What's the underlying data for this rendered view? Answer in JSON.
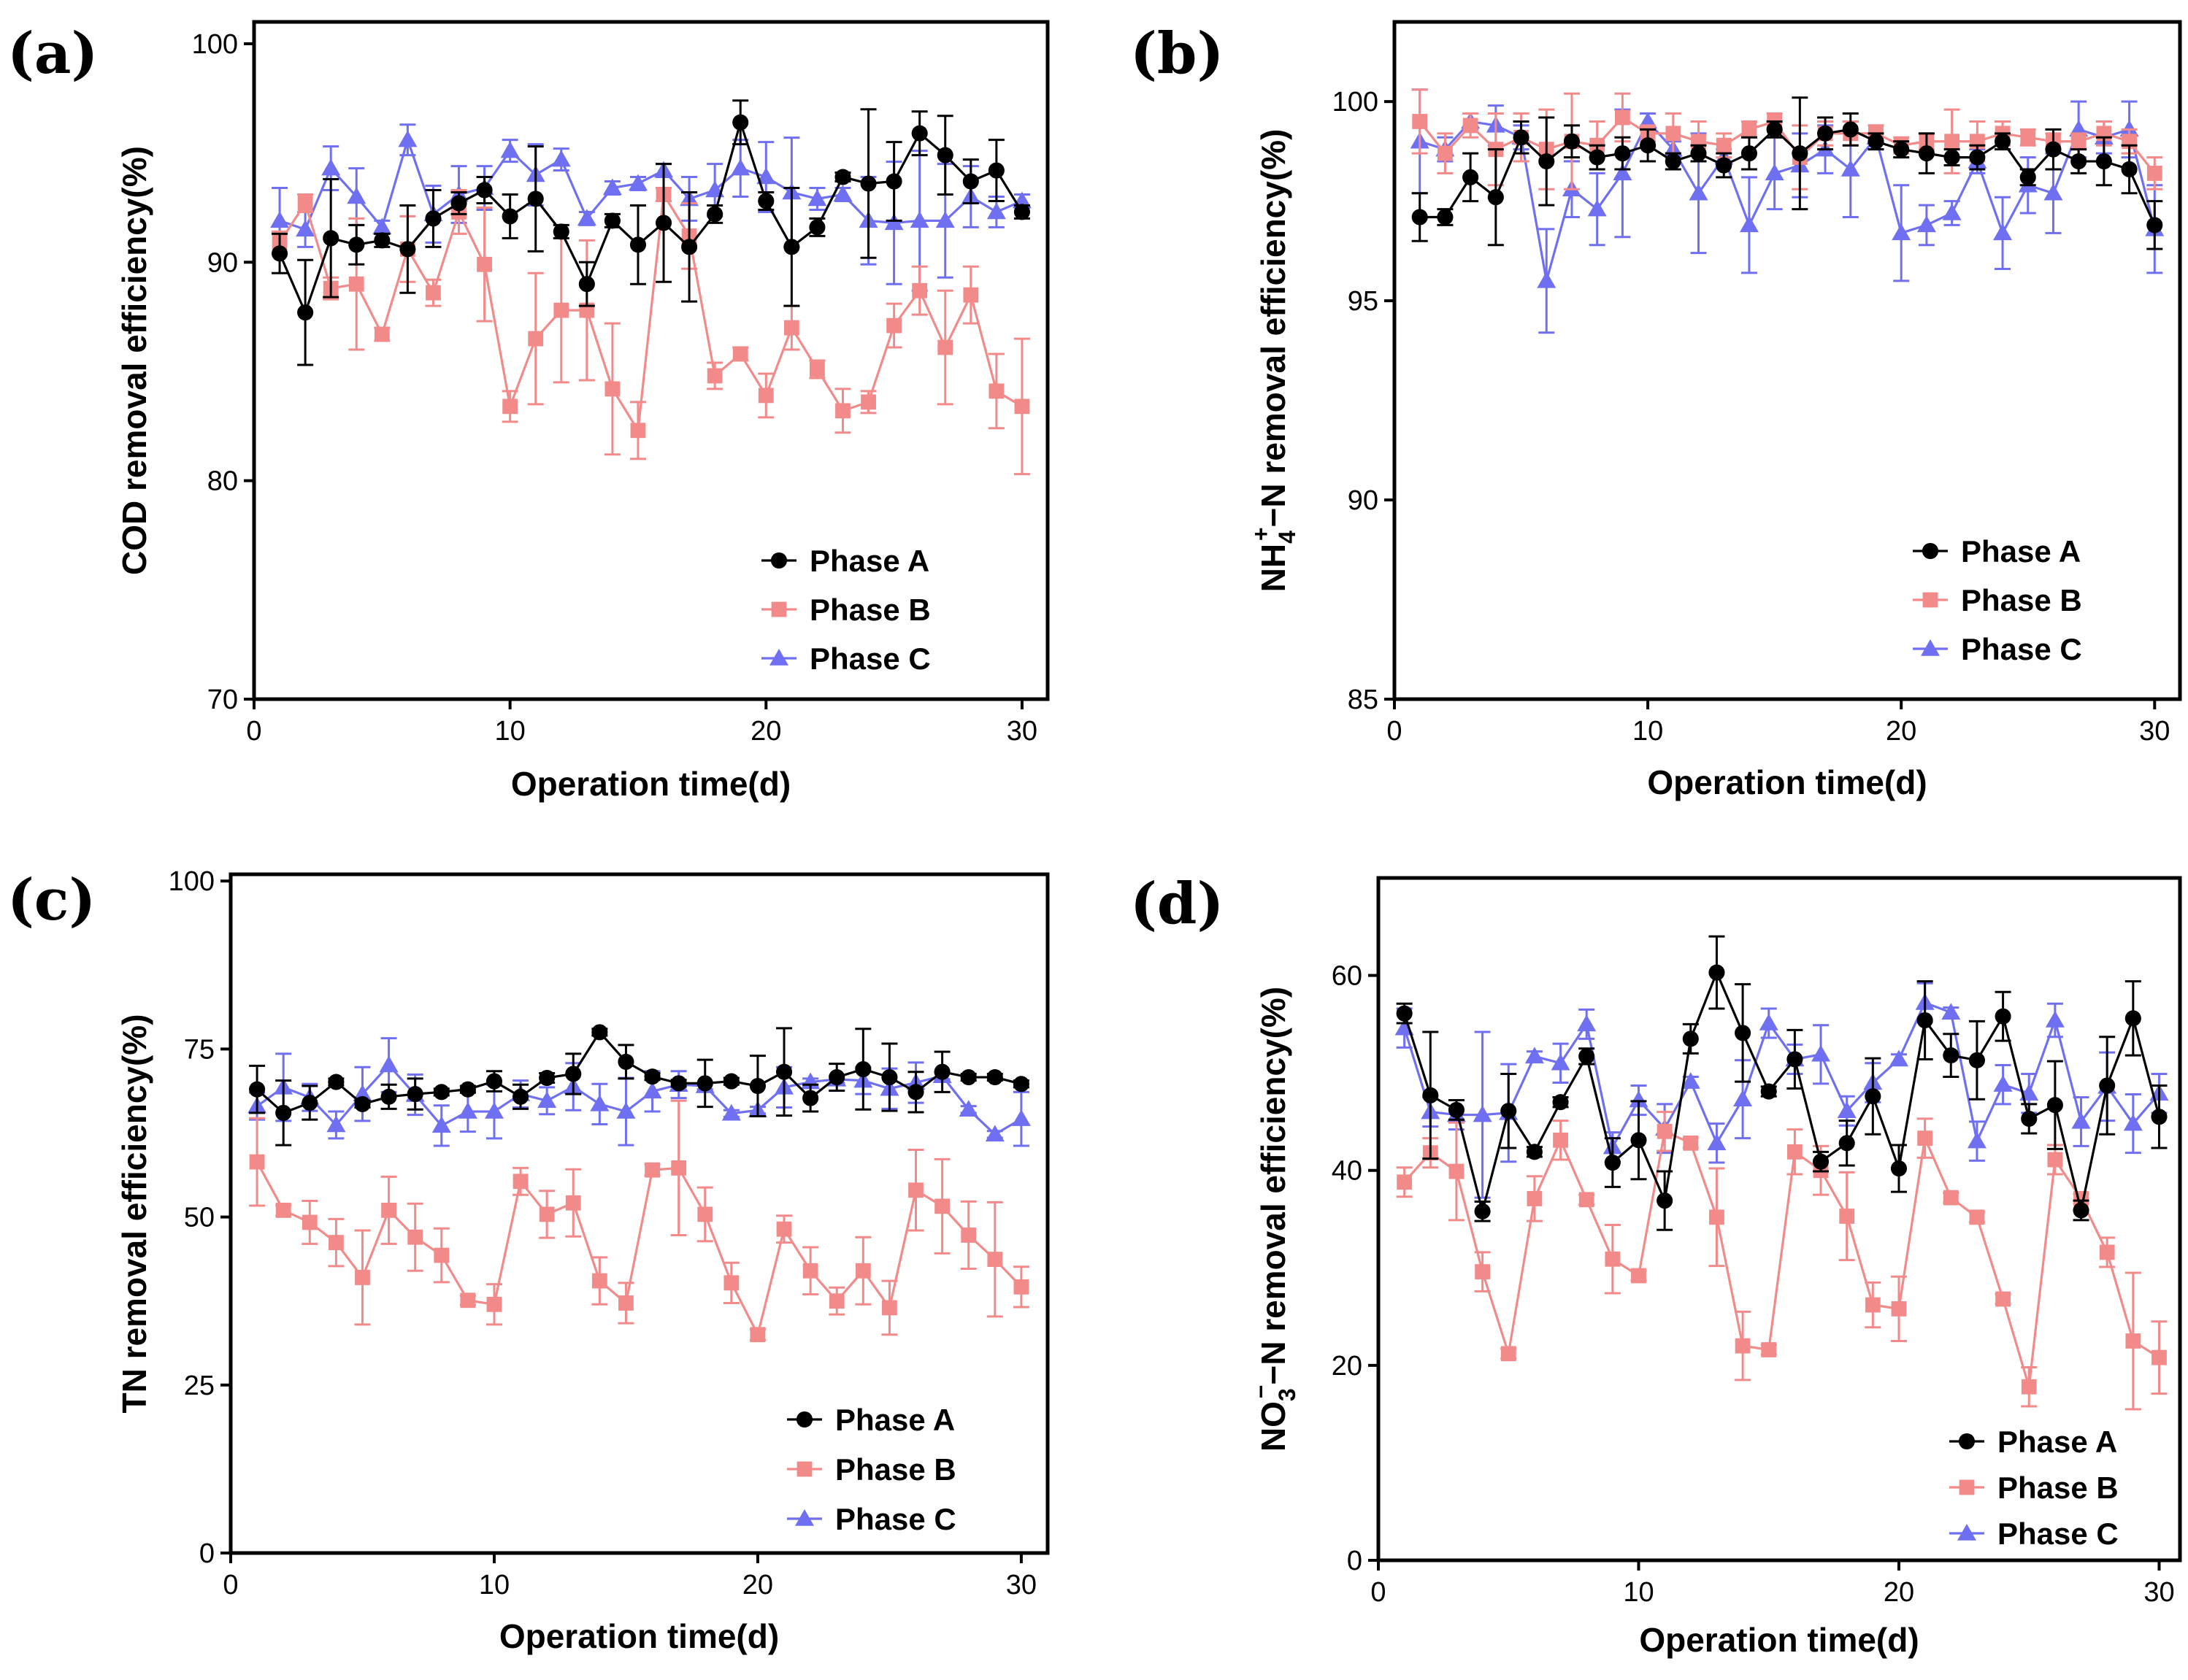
{
  "chart_data": [
    {
      "type": "line",
      "panel_label": "(a)",
      "xlabel": "Operation time(d)",
      "ylabel": "COD removal efficiency(%)",
      "ylabel_parts": [],
      "xlim": [
        0,
        31
      ],
      "ylim": [
        70,
        101
      ],
      "xticks": [
        0,
        10,
        20,
        30
      ],
      "yticks": [
        70,
        80,
        90,
        100
      ],
      "legend_position": "bottom-right",
      "x": [
        1,
        2,
        3,
        4,
        5,
        6,
        7,
        8,
        9,
        10,
        11,
        12,
        13,
        14,
        15,
        16,
        17,
        18,
        19,
        20,
        21,
        22,
        23,
        24,
        25,
        26,
        27,
        28,
        29,
        30
      ],
      "series": [
        {
          "name": "Phase A",
          "color": "#000000",
          "marker": "circle",
          "values": [
            90.4,
            87.7,
            91.1,
            90.8,
            91.0,
            90.6,
            92.0,
            92.7,
            93.3,
            92.1,
            92.9,
            91.4,
            89.0,
            91.9,
            90.8,
            91.8,
            90.7,
            92.2,
            96.4,
            92.8,
            90.7,
            91.6,
            93.9,
            93.6,
            93.7,
            95.9,
            94.9,
            93.7,
            94.2,
            92.3
          ],
          "errors": [
            0.9,
            2.4,
            2.7,
            0.9,
            0.3,
            2.0,
            1.3,
            0.5,
            0.6,
            1.0,
            2.4,
            0.3,
            1.0,
            0.3,
            1.8,
            2.7,
            2.5,
            0.4,
            1.0,
            0.4,
            2.7,
            0.4,
            0.2,
            3.4,
            1.8,
            1.0,
            1.8,
            1.0,
            1.4,
            0.3
          ]
        },
        {
          "name": "Phase B",
          "color": "#f28a8a",
          "marker": "square",
          "values": [
            90.9,
            92.7,
            88.8,
            89.0,
            86.7,
            90.6,
            88.6,
            92.3,
            89.9,
            83.4,
            86.5,
            87.8,
            87.8,
            84.2,
            82.3,
            93.1,
            91.2,
            84.8,
            85.8,
            83.9,
            87.0,
            85.1,
            83.2,
            83.6,
            87.1,
            88.7,
            86.1,
            88.5,
            84.1,
            83.4
          ],
          "errors": [
            0.5,
            0.4,
            0.5,
            3.0,
            0.3,
            1.5,
            0.6,
            1.0,
            2.6,
            0.7,
            3.0,
            3.3,
            3.2,
            3.0,
            1.3,
            0.3,
            1.5,
            0.6,
            0.3,
            1.0,
            1.0,
            0.4,
            1.0,
            0.5,
            1.0,
            1.1,
            2.6,
            1.3,
            1.7,
            3.1
          ]
        },
        {
          "name": "Phase C",
          "color": "#6f6ff2",
          "marker": "triangle",
          "values": [
            91.9,
            91.5,
            94.3,
            93.0,
            91.6,
            95.6,
            92.2,
            93.1,
            93.4,
            95.1,
            94.0,
            94.7,
            92.0,
            93.4,
            93.6,
            94.2,
            92.9,
            93.3,
            94.3,
            93.9,
            93.2,
            92.9,
            93.1,
            91.9,
            91.8,
            91.9,
            91.9,
            93.0,
            92.3,
            92.8
          ],
          "errors": [
            1.5,
            0.8,
            1.0,
            1.3,
            0.3,
            0.7,
            1.3,
            1.3,
            1.0,
            0.5,
            1.4,
            0.5,
            0.3,
            0.3,
            0.3,
            0.3,
            1.0,
            1.2,
            1.3,
            1.6,
            2.5,
            0.5,
            0.3,
            2.0,
            2.8,
            3.2,
            2.6,
            1.4,
            0.7,
            0.3
          ]
        }
      ]
    },
    {
      "type": "line",
      "panel_label": "(b)",
      "xlabel": "Operation time(d)",
      "ylabel": "NH4+−N removal efficiency(%)",
      "ylabel_parts": [
        "NH",
        "4",
        "+",
        "−N removal efficiency(%)"
      ],
      "xlim": [
        0,
        31
      ],
      "ylim": [
        85,
        102
      ],
      "xticks": [
        0,
        10,
        20,
        30
      ],
      "yticks": [
        85,
        90,
        95,
        100
      ],
      "legend_position": "bottom-right",
      "x": [
        1,
        2,
        3,
        4,
        5,
        6,
        7,
        8,
        9,
        10,
        11,
        12,
        13,
        14,
        15,
        16,
        17,
        18,
        19,
        20,
        21,
        22,
        23,
        24,
        25,
        26,
        27,
        28,
        29,
        30
      ],
      "series": [
        {
          "name": "Phase A",
          "color": "#000000",
          "marker": "circle",
          "values": [
            97.1,
            97.1,
            98.1,
            97.6,
            99.1,
            98.5,
            99.0,
            98.6,
            98.7,
            98.9,
            98.5,
            98.7,
            98.4,
            98.7,
            99.3,
            98.7,
            99.2,
            99.3,
            99.0,
            98.8,
            98.7,
            98.6,
            98.6,
            99.0,
            98.1,
            98.8,
            98.5,
            98.5,
            98.3,
            96.9
          ],
          "errors": [
            0.6,
            0.2,
            0.6,
            1.2,
            0.4,
            1.1,
            0.4,
            0.3,
            0.4,
            0.4,
            0.2,
            0.2,
            0.3,
            0.4,
            0.2,
            1.4,
            0.4,
            0.4,
            0.2,
            0.2,
            0.5,
            0.2,
            0.3,
            0.2,
            0.2,
            0.5,
            0.3,
            0.6,
            0.6,
            0.6
          ]
        },
        {
          "name": "Phase B",
          "color": "#f28a8a",
          "marker": "square",
          "values": [
            99.5,
            98.7,
            99.4,
            98.8,
            99.1,
            98.8,
            99.0,
            98.9,
            99.6,
            99.2,
            99.2,
            99.0,
            98.9,
            99.3,
            99.5,
            98.6,
            99.2,
            99.2,
            99.2,
            98.9,
            99.0,
            99.0,
            99.0,
            99.2,
            99.1,
            99.0,
            99.0,
            99.2,
            99.0,
            98.2
          ],
          "errors": [
            0.8,
            0.5,
            0.3,
            0.9,
            0.6,
            1.0,
            1.2,
            0.6,
            0.6,
            0.2,
            0.5,
            0.5,
            0.3,
            0.2,
            0.2,
            0.8,
            0.3,
            0.3,
            0.2,
            0.2,
            0.2,
            0.8,
            0.5,
            0.3,
            0.2,
            0.2,
            0.2,
            0.3,
            0.3,
            0.4
          ]
        },
        {
          "name": "Phase C",
          "color": "#6f6ff2",
          "marker": "triangle",
          "values": [
            99.0,
            98.8,
            99.5,
            99.4,
            99.1,
            95.5,
            97.8,
            97.3,
            98.2,
            99.5,
            98.8,
            97.7,
            98.6,
            96.9,
            98.2,
            98.4,
            98.8,
            98.3,
            99.1,
            96.7,
            96.9,
            97.2,
            98.5,
            96.7,
            97.9,
            97.7,
            99.3,
            99.1,
            99.3,
            96.8
          ],
          "errors": [
            1.3,
            0.3,
            0.2,
            0.5,
            0.3,
            1.3,
            0.7,
            0.9,
            1.6,
            0.2,
            0.2,
            1.5,
            0.2,
            1.2,
            0.9,
            0.8,
            0.6,
            1.2,
            0.3,
            1.2,
            0.5,
            0.3,
            0.3,
            0.9,
            0.7,
            1.0,
            0.7,
            0.4,
            0.7,
            1.1
          ]
        }
      ]
    },
    {
      "type": "line",
      "panel_label": "(c)",
      "xlabel": "Operation time(d)",
      "ylabel": "TN removal efficiency(%)",
      "ylabel_parts": [],
      "xlim": [
        0,
        31
      ],
      "ylim": [
        0,
        101
      ],
      "xticks": [
        0,
        10,
        20,
        30
      ],
      "yticks": [
        0,
        25,
        50,
        75,
        100
      ],
      "legend_position": "bottom-right",
      "x": [
        1,
        2,
        3,
        4,
        5,
        6,
        7,
        8,
        9,
        10,
        11,
        12,
        13,
        14,
        15,
        16,
        17,
        18,
        19,
        20,
        21,
        22,
        23,
        24,
        25,
        26,
        27,
        28,
        29,
        30
      ],
      "series": [
        {
          "name": "Phase A",
          "color": "#000000",
          "marker": "circle",
          "values": [
            69.0,
            65.5,
            67.0,
            70.1,
            66.8,
            67.9,
            68.3,
            68.6,
            69.0,
            70.2,
            67.9,
            70.7,
            71.3,
            77.5,
            73.1,
            70.9,
            69.9,
            69.9,
            70.2,
            69.5,
            71.6,
            67.7,
            70.8,
            72.0,
            70.8,
            68.6,
            71.6,
            70.8,
            70.8,
            69.8
          ],
          "errors": [
            3.5,
            4.8,
            2.5,
            0.5,
            0.5,
            1.8,
            2.3,
            0.5,
            0.5,
            1.5,
            1.8,
            0.7,
            3.0,
            0.5,
            2.5,
            0.5,
            0.5,
            3.5,
            0.5,
            4.5,
            6.5,
            2.0,
            2.0,
            6.0,
            5.0,
            3.0,
            3.0,
            0.5,
            0.5,
            0.5
          ]
        },
        {
          "name": "Phase B",
          "color": "#f28a8a",
          "marker": "square",
          "values": [
            58.2,
            51.0,
            49.2,
            46.2,
            41.0,
            51.0,
            47.0,
            44.3,
            37.6,
            37.0,
            55.3,
            50.4,
            52.1,
            40.5,
            37.2,
            57.0,
            57.3,
            50.4,
            40.2,
            32.5,
            48.2,
            42.0,
            37.5,
            42.0,
            36.5,
            54.0,
            51.6,
            47.3,
            43.7,
            39.6
          ],
          "errors": [
            6.5,
            0.8,
            3.2,
            3.5,
            7.0,
            5.0,
            5.0,
            4.0,
            0.7,
            3.0,
            2.0,
            3.5,
            5.0,
            3.5,
            3.0,
            0.8,
            10.0,
            4.0,
            3.0,
            0.8,
            2.0,
            3.5,
            2.0,
            5.0,
            4.0,
            6.0,
            7.0,
            5.0,
            8.5,
            3.0
          ]
        },
        {
          "name": "Phase C",
          "color": "#6f6ff2",
          "marker": "triangle",
          "values": [
            66.5,
            69.3,
            67.8,
            63.7,
            68.3,
            72.6,
            68.2,
            63.6,
            65.7,
            65.7,
            68.3,
            67.3,
            69.4,
            66.8,
            65.7,
            68.7,
            69.7,
            69.5,
            65.4,
            65.9,
            69.3,
            70.1,
            70.5,
            70.3,
            69.1,
            70.0,
            71.0,
            66.0,
            62.3,
            64.6
          ],
          "errors": [
            2.0,
            5.0,
            2.0,
            2.0,
            4.0,
            4.0,
            3.0,
            3.0,
            3.0,
            4.0,
            2.0,
            2.0,
            3.5,
            3.0,
            5.0,
            3.0,
            2.0,
            0.5,
            0.5,
            0.5,
            3.0,
            0.5,
            0.5,
            2.0,
            3.0,
            3.0,
            0.5,
            0.5,
            0.5,
            4.0
          ]
        }
      ]
    },
    {
      "type": "line",
      "panel_label": "(d)",
      "xlabel": "Operation time(d)",
      "ylabel": "NO3−−N removal efficiency(%)",
      "ylabel_parts": [
        "NO",
        "3",
        "−",
        "−N removal efficiency(%)"
      ],
      "xlim": [
        0,
        30.8
      ],
      "ylim": [
        0,
        70
      ],
      "xticks": [
        0,
        10,
        20,
        30
      ],
      "yticks": [
        0,
        20,
        40,
        60
      ],
      "legend_position": "bottom-right",
      "x": [
        1,
        2,
        3,
        4,
        5,
        6,
        7,
        8,
        9,
        10,
        11,
        12,
        13,
        14,
        15,
        16,
        17,
        18,
        19,
        20,
        21,
        22,
        23,
        24,
        25,
        26,
        27,
        28,
        29,
        30
      ],
      "series": [
        {
          "name": "Phase A",
          "color": "#000000",
          "marker": "circle",
          "values": [
            56.1,
            47.7,
            46.2,
            35.8,
            46.1,
            41.9,
            47.0,
            51.7,
            40.8,
            43.1,
            36.9,
            53.5,
            60.3,
            54.1,
            48.1,
            51.4,
            40.9,
            42.8,
            47.6,
            40.2,
            55.4,
            51.8,
            51.3,
            55.8,
            45.3,
            46.7,
            35.9,
            48.7,
            55.6,
            45.5
          ],
          "errors": [
            1.0,
            6.5,
            1.0,
            1.0,
            3.8,
            0.5,
            0.5,
            0.8,
            2.5,
            4.0,
            3.0,
            1.5,
            3.7,
            5.0,
            0.5,
            3.0,
            1.0,
            2.3,
            3.9,
            2.4,
            4.0,
            2.2,
            4.0,
            2.5,
            1.5,
            4.5,
            1.0,
            5.0,
            3.8,
            3.2
          ]
        },
        {
          "name": "Phase B",
          "color": "#f28a8a",
          "marker": "square",
          "values": [
            38.8,
            41.8,
            39.9,
            29.6,
            21.2,
            37.1,
            43.1,
            37.0,
            30.9,
            29.2,
            44.0,
            42.8,
            35.2,
            22.0,
            21.6,
            41.9,
            40.0,
            35.3,
            26.2,
            25.8,
            43.3,
            37.2,
            35.2,
            26.8,
            17.8,
            41.1,
            37.1,
            31.6,
            22.5,
            20.8
          ],
          "errors": [
            1.5,
            1.5,
            5.0,
            2.0,
            0.5,
            2.3,
            2.0,
            0.5,
            3.5,
            0.5,
            2.0,
            0.5,
            5.0,
            3.5,
            0.5,
            2.3,
            2.5,
            4.5,
            2.3,
            3.3,
            2.0,
            0.5,
            0.5,
            0.5,
            2.0,
            1.5,
            0.5,
            1.5,
            7.0,
            3.7
          ]
        },
        {
          "name": "Phase C",
          "color": "#6f6ff2",
          "marker": "triangle",
          "values": [
            54.6,
            46.0,
            45.7,
            45.7,
            45.9,
            51.7,
            51.0,
            55.0,
            42.4,
            47.2,
            44.3,
            49.1,
            42.8,
            47.3,
            55.1,
            51.4,
            51.9,
            46.1,
            49.0,
            51.4,
            57.2,
            56.2,
            43.0,
            48.8,
            47.9,
            55.4,
            45.0,
            48.6,
            44.8,
            47.9
          ],
          "errors": [
            2.0,
            1.5,
            1.5,
            8.5,
            5.0,
            0.5,
            2.0,
            1.5,
            1.5,
            1.5,
            2.5,
            0.5,
            2.0,
            4.0,
            1.5,
            1.5,
            3.0,
            1.5,
            2.0,
            0.5,
            2.0,
            0.5,
            2.0,
            2.0,
            2.0,
            1.7,
            2.5,
            3.5,
            3.0,
            2.0
          ]
        }
      ]
    }
  ]
}
